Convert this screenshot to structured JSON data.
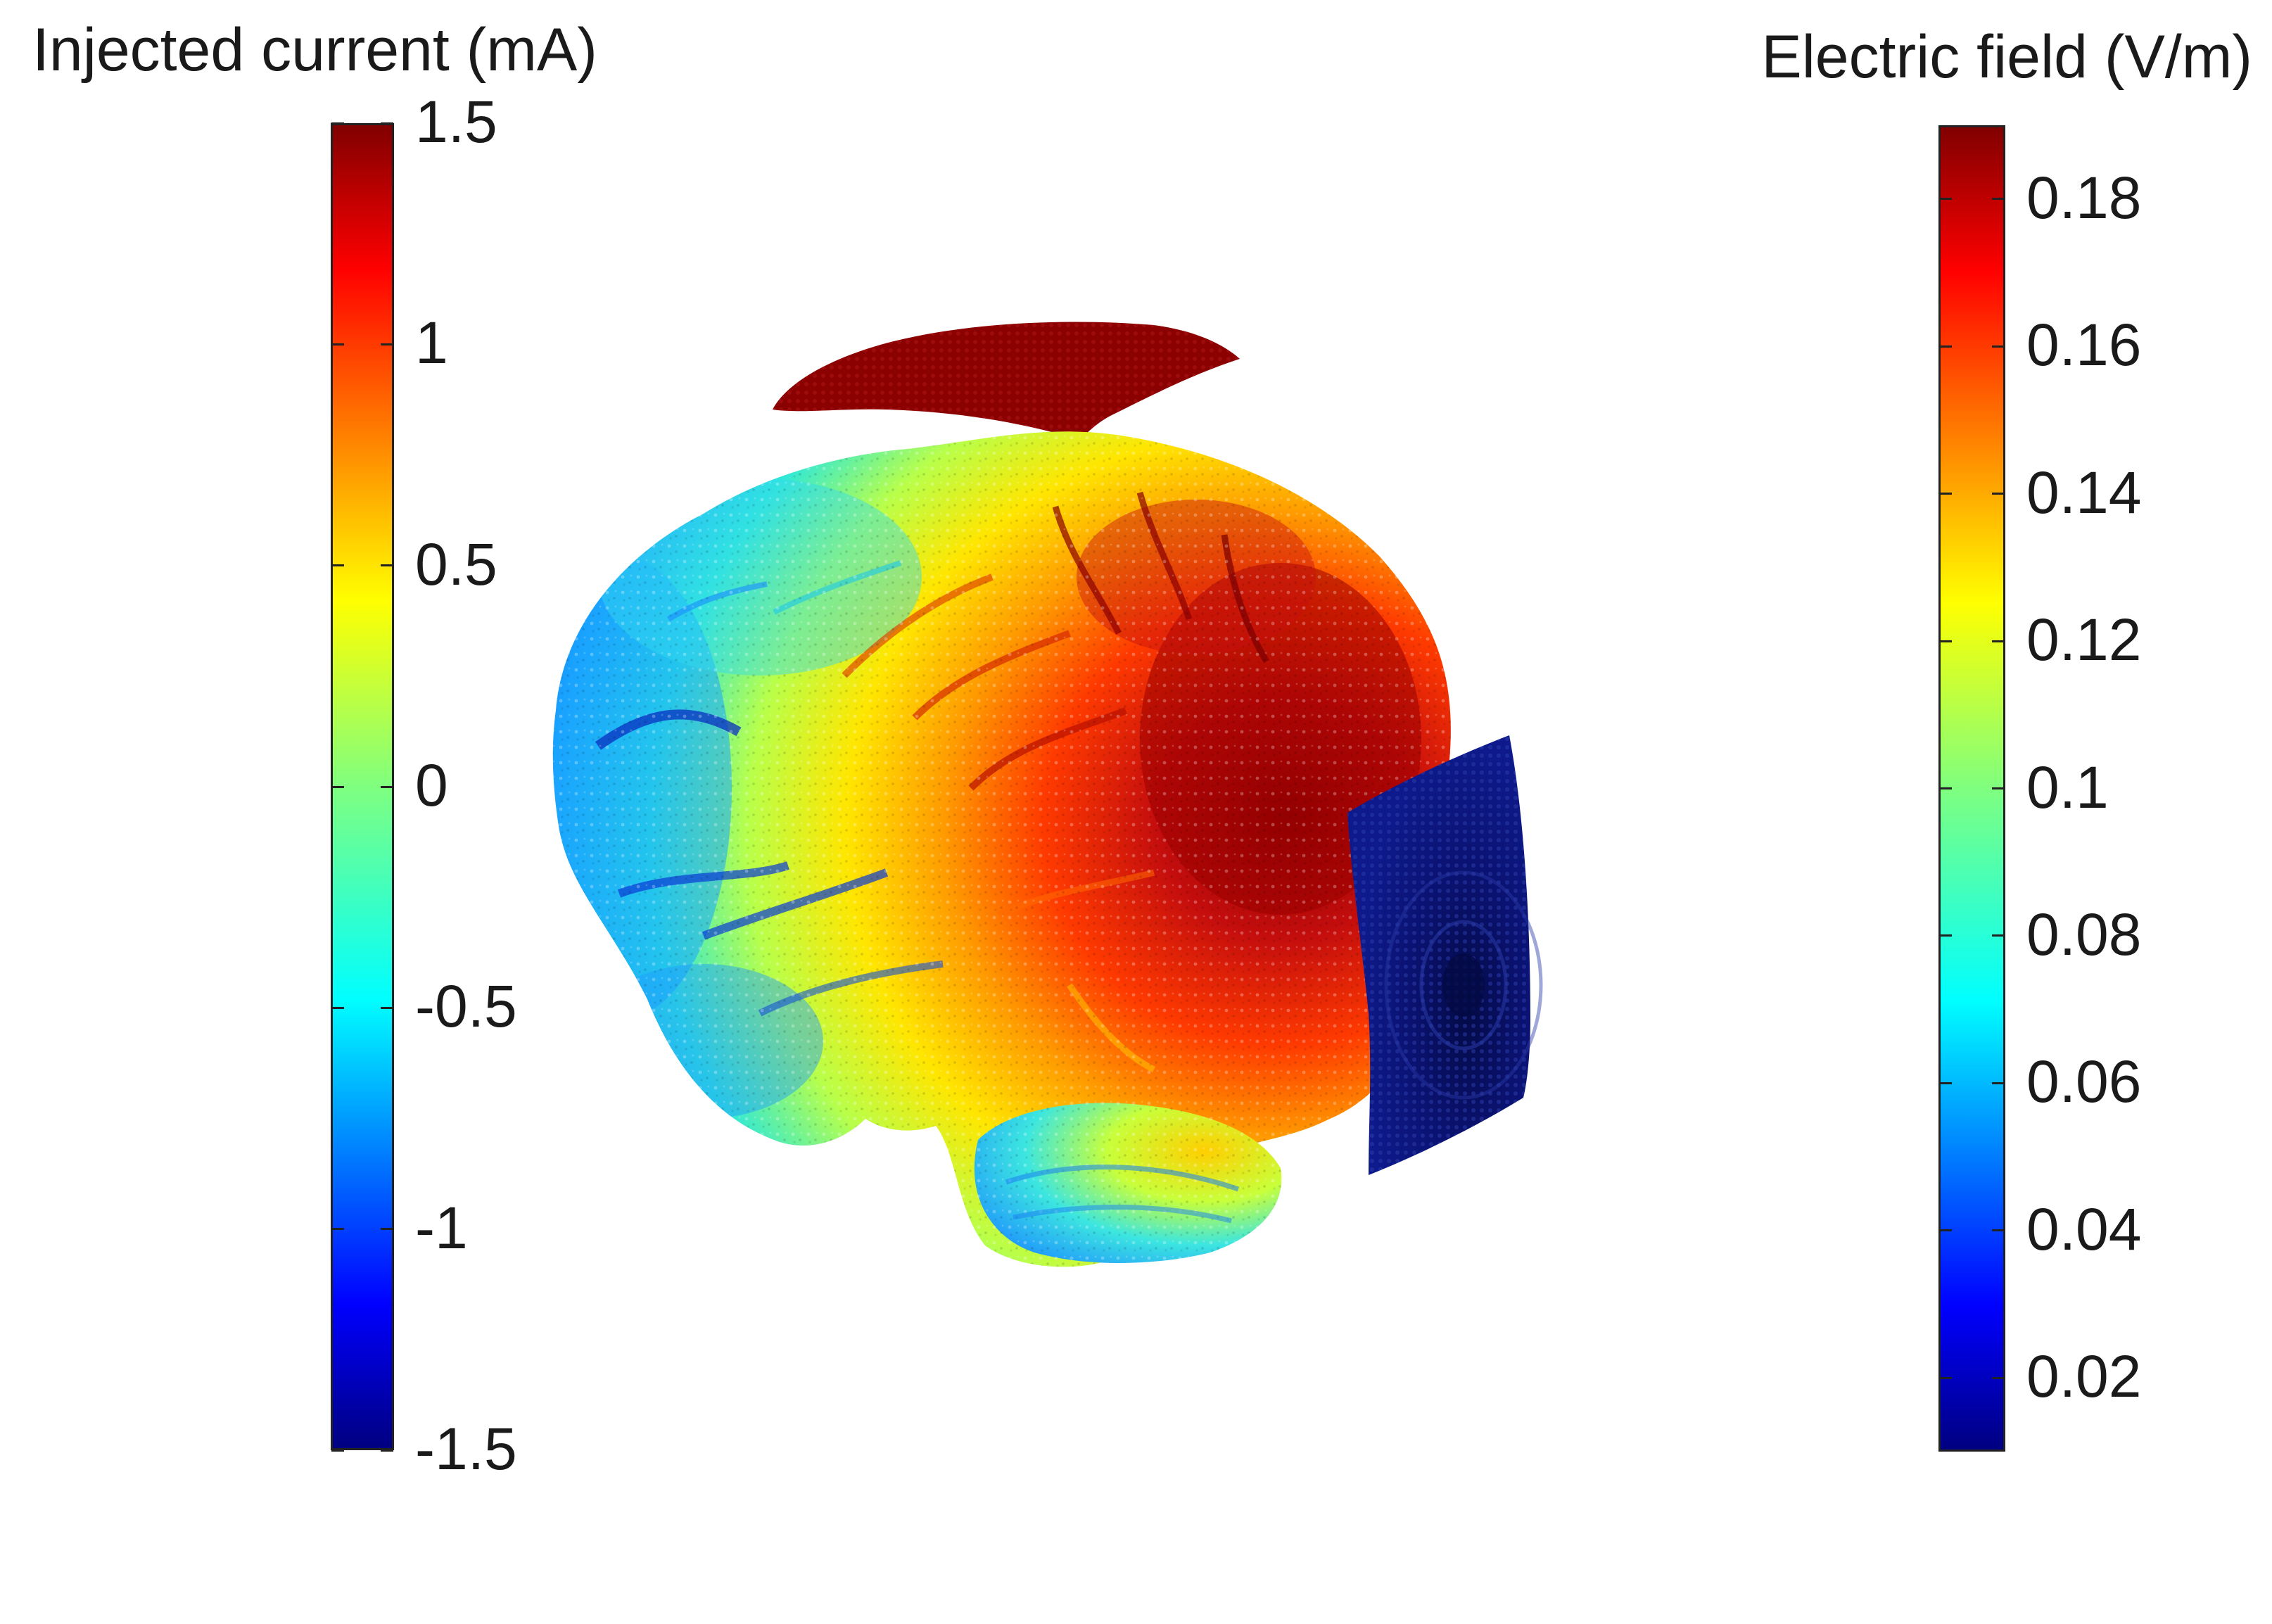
{
  "left_colorbar": {
    "title": "Injected current (mA)",
    "range": [
      -1.5,
      1.5
    ],
    "tick_labels": [
      "1.5",
      "1",
      "0.5",
      "0",
      "-0.5",
      "-1",
      "-1.5"
    ],
    "tick_values": [
      1.5,
      1,
      0.5,
      0,
      -0.5,
      -1,
      -1.5
    ],
    "colormap": "jet"
  },
  "right_colorbar": {
    "title": "Electric field (V/m)",
    "range": [
      0.01,
      0.19
    ],
    "tick_labels": [
      "0.18",
      "0.16",
      "0.14",
      "0.12",
      "0.1",
      "0.08",
      "0.06",
      "0.04",
      "0.02"
    ],
    "tick_values": [
      0.18,
      0.16,
      0.14,
      0.12,
      0.1,
      0.08,
      0.06,
      0.04,
      0.02
    ],
    "colormap": "jet"
  },
  "colors": {
    "top_electrode": "#8b0000",
    "side_electrode": "#0a1270",
    "background": "#ffffff"
  }
}
